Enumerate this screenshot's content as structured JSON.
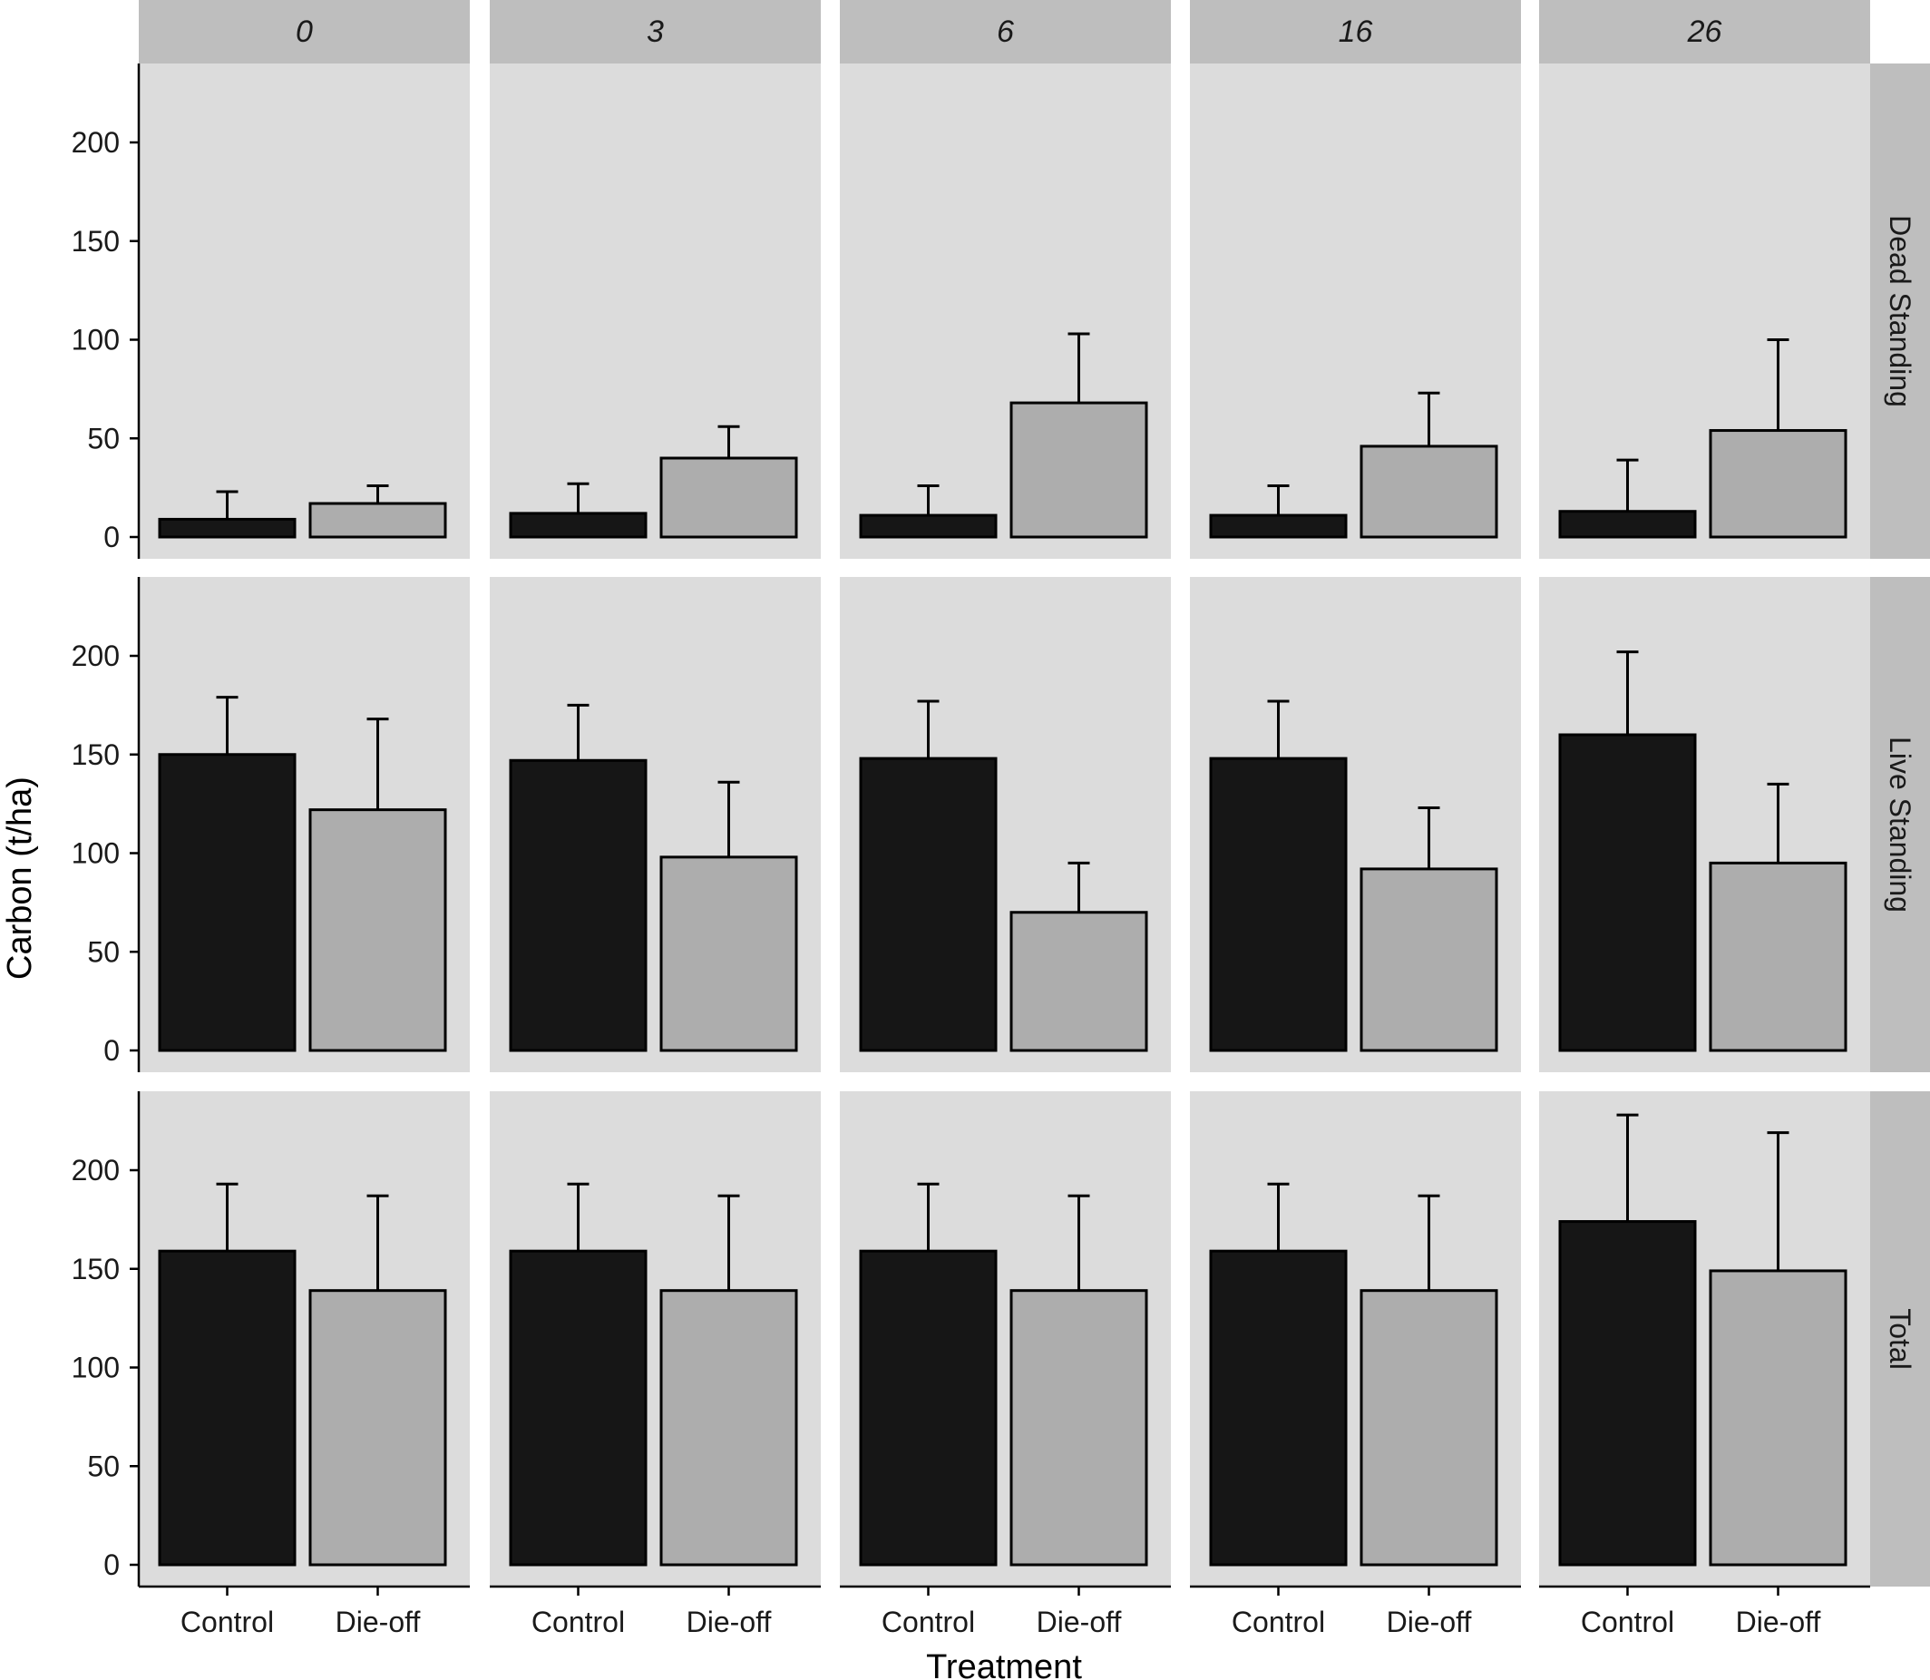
{
  "chart_data": {
    "type": "bar",
    "xlabel": "Treatment",
    "ylabel": "Carbon (t/ha)",
    "ylim": [
      0,
      240
    ],
    "yticks": [
      0,
      50,
      100,
      150,
      200
    ],
    "categories": [
      "Control",
      "Die-off"
    ],
    "columns": [
      "0",
      "3",
      "6",
      "16",
      "26"
    ],
    "rows": [
      "Dead Standing",
      "Live Standing",
      "Total"
    ],
    "colors": {
      "Control": "#161616",
      "Die-off": "#adadad",
      "panel": "#dcdcdc",
      "strip": "#bebebe"
    },
    "panels": [
      {
        "row": "Dead Standing",
        "col": "0",
        "values": [
          9,
          17
        ],
        "errors": [
          23,
          26
        ]
      },
      {
        "row": "Dead Standing",
        "col": "3",
        "values": [
          12,
          40
        ],
        "errors": [
          27,
          56
        ]
      },
      {
        "row": "Dead Standing",
        "col": "6",
        "values": [
          11,
          68
        ],
        "errors": [
          26,
          103
        ]
      },
      {
        "row": "Dead Standing",
        "col": "16",
        "values": [
          11,
          46
        ],
        "errors": [
          26,
          73
        ]
      },
      {
        "row": "Dead Standing",
        "col": "26",
        "values": [
          13,
          54
        ],
        "errors": [
          39,
          100
        ]
      },
      {
        "row": "Live Standing",
        "col": "0",
        "values": [
          150,
          122
        ],
        "errors": [
          179,
          168
        ]
      },
      {
        "row": "Live Standing",
        "col": "3",
        "values": [
          147,
          98
        ],
        "errors": [
          175,
          136
        ]
      },
      {
        "row": "Live Standing",
        "col": "6",
        "values": [
          148,
          70
        ],
        "errors": [
          177,
          95
        ]
      },
      {
        "row": "Live Standing",
        "col": "16",
        "values": [
          148,
          92
        ],
        "errors": [
          177,
          123
        ]
      },
      {
        "row": "Live Standing",
        "col": "26",
        "values": [
          160,
          95
        ],
        "errors": [
          202,
          135
        ]
      },
      {
        "row": "Total",
        "col": "0",
        "values": [
          159,
          139
        ],
        "errors": [
          193,
          187
        ]
      },
      {
        "row": "Total",
        "col": "3",
        "values": [
          159,
          139
        ],
        "errors": [
          193,
          187
        ]
      },
      {
        "row": "Total",
        "col": "6",
        "values": [
          159,
          139
        ],
        "errors": [
          193,
          187
        ]
      },
      {
        "row": "Total",
        "col": "16",
        "values": [
          159,
          139
        ],
        "errors": [
          193,
          187
        ]
      },
      {
        "row": "Total",
        "col": "26",
        "values": [
          174,
          149
        ],
        "errors": [
          228,
          219
        ]
      }
    ]
  }
}
